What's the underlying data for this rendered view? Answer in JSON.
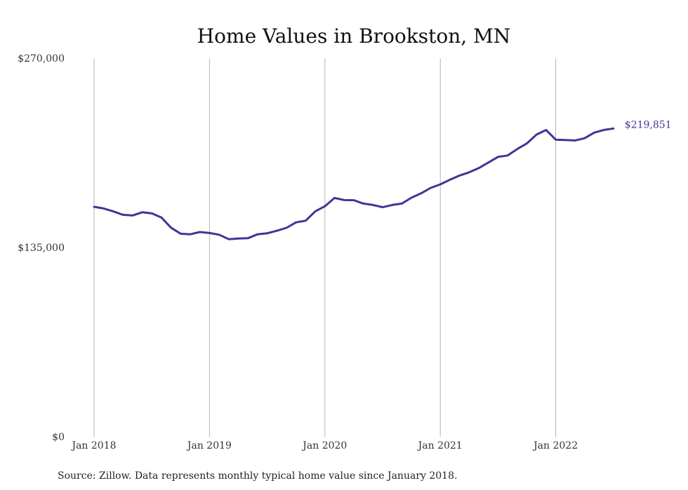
{
  "chart_data": {
    "type": "line",
    "title": "Home Values in Brookston, MN",
    "xlabel": "",
    "ylabel": "",
    "ylim": [
      0,
      270000
    ],
    "y_ticks": [
      {
        "value": 0,
        "label": "$0"
      },
      {
        "value": 135000,
        "label": "$135,000"
      },
      {
        "value": 270000,
        "label": "$270,000"
      }
    ],
    "x_ticks": [
      {
        "value": "2018-01",
        "label": "Jan 2018"
      },
      {
        "value": "2019-01",
        "label": "Jan 2019"
      },
      {
        "value": "2020-01",
        "label": "Jan 2020"
      },
      {
        "value": "2021-01",
        "label": "Jan 2021"
      },
      {
        "value": "2022-01",
        "label": "Jan 2022"
      }
    ],
    "grid": "vertical",
    "series": [
      {
        "color": "#3d3797",
        "end_label": "$219,851",
        "x": [
          "2018-01",
          "2018-02",
          "2018-03",
          "2018-04",
          "2018-05",
          "2018-06",
          "2018-07",
          "2018-08",
          "2018-09",
          "2018-10",
          "2018-11",
          "2018-12",
          "2019-01",
          "2019-02",
          "2019-03",
          "2019-04",
          "2019-05",
          "2019-06",
          "2019-07",
          "2019-08",
          "2019-09",
          "2019-10",
          "2019-11",
          "2019-12",
          "2020-01",
          "2020-02",
          "2020-03",
          "2020-04",
          "2020-05",
          "2020-06",
          "2020-07",
          "2020-08",
          "2020-09",
          "2020-10",
          "2020-11",
          "2020-12",
          "2021-01",
          "2021-02",
          "2021-03",
          "2021-04",
          "2021-05",
          "2021-06",
          "2021-07",
          "2021-08",
          "2021-09",
          "2021-10",
          "2021-11",
          "2021-12",
          "2022-01",
          "2022-02",
          "2022-03",
          "2022-04",
          "2022-05",
          "2022-06",
          "2022-07"
        ],
        "values": [
          164000,
          162800,
          160700,
          158300,
          157800,
          160100,
          159300,
          156400,
          149100,
          144800,
          144400,
          146000,
          145300,
          144100,
          140900,
          141400,
          141600,
          144400,
          145100,
          146900,
          149000,
          152900,
          154100,
          160800,
          164400,
          170300,
          168800,
          168700,
          166300,
          165300,
          163700,
          165300,
          166300,
          170500,
          173600,
          177500,
          180000,
          183300,
          186300,
          188600,
          191600,
          195600,
          199600,
          200600,
          205200,
          209200,
          215500,
          218800,
          211900,
          211600,
          211300,
          212900,
          216900,
          218800,
          219851
        ]
      }
    ],
    "source_note": "Source: Zillow. Data represents monthly typical home value since January 2018."
  }
}
